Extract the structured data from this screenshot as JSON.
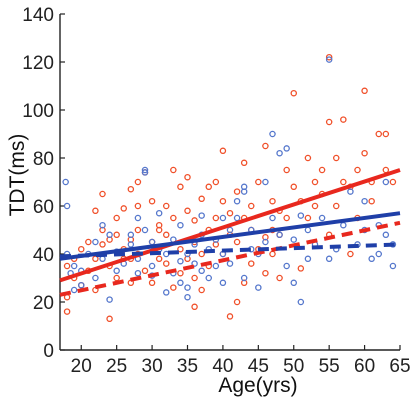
{
  "chart_data": {
    "type": "scatter",
    "title": "",
    "xlabel": "Age(yrs)",
    "ylabel": "TDT(ms)",
    "xlim": [
      17,
      65
    ],
    "ylim": [
      0,
      140
    ],
    "xticks": [
      20,
      25,
      30,
      35,
      40,
      45,
      50,
      55,
      60,
      65
    ],
    "yticks": [
      0,
      20,
      40,
      60,
      80,
      100,
      120,
      140
    ],
    "grid": false,
    "legend": "none",
    "colors": {
      "red": "#f0502a",
      "blue": "#5577cc",
      "red_line": "#e8281e",
      "blue_line": "#1f3fa8"
    },
    "series": [
      {
        "color": "red",
        "points": [
          [
            18,
            22
          ],
          [
            18,
            16
          ],
          [
            18,
            35
          ],
          [
            19,
            30
          ],
          [
            19,
            38
          ],
          [
            20,
            42
          ],
          [
            20,
            27
          ],
          [
            21,
            33
          ],
          [
            21,
            45
          ],
          [
            22,
            58
          ],
          [
            22,
            38
          ],
          [
            22,
            25
          ],
          [
            23,
            50
          ],
          [
            23,
            65
          ],
          [
            23,
            44
          ],
          [
            24,
            13
          ],
          [
            24,
            35
          ],
          [
            24,
            46
          ],
          [
            25,
            55
          ],
          [
            25,
            48
          ],
          [
            25,
            30
          ],
          [
            26,
            59
          ],
          [
            26,
            42
          ],
          [
            26,
            38
          ],
          [
            27,
            67
          ],
          [
            27,
            46
          ],
          [
            27,
            28
          ],
          [
            27,
            38
          ],
          [
            28,
            70
          ],
          [
            28,
            60
          ],
          [
            28,
            50
          ],
          [
            28,
            40
          ],
          [
            29,
            74
          ],
          [
            29,
            33
          ],
          [
            30,
            45
          ],
          [
            30,
            62
          ],
          [
            30,
            28
          ],
          [
            31,
            52
          ],
          [
            31,
            38
          ],
          [
            31,
            50
          ],
          [
            32,
            48
          ],
          [
            32,
            36
          ],
          [
            32,
            60
          ],
          [
            33,
            75
          ],
          [
            33,
            55
          ],
          [
            33,
            26
          ],
          [
            34,
            68
          ],
          [
            34,
            42
          ],
          [
            34,
            32
          ],
          [
            35,
            38
          ],
          [
            35,
            58
          ],
          [
            35,
            72
          ],
          [
            36,
            45
          ],
          [
            36,
            54
          ],
          [
            36,
            30
          ],
          [
            36,
            18
          ],
          [
            37,
            63
          ],
          [
            37,
            40
          ],
          [
            37,
            25
          ],
          [
            38,
            50
          ],
          [
            38,
            35
          ],
          [
            38,
            68
          ],
          [
            39,
            70
          ],
          [
            39,
            55
          ],
          [
            39,
            44
          ],
          [
            40,
            83
          ],
          [
            40,
            62
          ],
          [
            40,
            40
          ],
          [
            41,
            57
          ],
          [
            41,
            48
          ],
          [
            41,
            14
          ],
          [
            42,
            66
          ],
          [
            42,
            45
          ],
          [
            42,
            20
          ],
          [
            43,
            78
          ],
          [
            43,
            55
          ],
          [
            43,
            28
          ],
          [
            44,
            60
          ],
          [
            44,
            50
          ],
          [
            44,
            36
          ],
          [
            45,
            70
          ],
          [
            45,
            42
          ],
          [
            46,
            85
          ],
          [
            46,
            32
          ],
          [
            46,
            47
          ],
          [
            47,
            62
          ],
          [
            47,
            50
          ],
          [
            47,
            40
          ],
          [
            48,
            58
          ],
          [
            48,
            30
          ],
          [
            48,
            48
          ],
          [
            49,
            75
          ],
          [
            49,
            55
          ],
          [
            50,
            107
          ],
          [
            50,
            68
          ],
          [
            51,
            62
          ],
          [
            51,
            34
          ],
          [
            52,
            80
          ],
          [
            52,
            55
          ],
          [
            53,
            70
          ],
          [
            53,
            60
          ],
          [
            54,
            75
          ],
          [
            54,
            65
          ],
          [
            55,
            95
          ],
          [
            55,
            122
          ],
          [
            55,
            48
          ],
          [
            56,
            80
          ],
          [
            56,
            60
          ],
          [
            57,
            96
          ],
          [
            57,
            70
          ],
          [
            58,
            68
          ],
          [
            58,
            40
          ],
          [
            59,
            75
          ],
          [
            59,
            55
          ],
          [
            60,
            108
          ],
          [
            60,
            82
          ],
          [
            61,
            70
          ],
          [
            61,
            62
          ],
          [
            62,
            90
          ],
          [
            63,
            90
          ],
          [
            63,
            75
          ],
          [
            64,
            70
          ]
        ]
      },
      {
        "color": "blue",
        "points": [
          [
            17.8,
            70
          ],
          [
            18,
            60
          ],
          [
            18,
            40
          ],
          [
            18.5,
            32
          ],
          [
            19,
            25
          ],
          [
            19,
            35
          ],
          [
            20,
            27
          ],
          [
            20,
            33
          ],
          [
            21,
            40
          ],
          [
            22,
            45
          ],
          [
            22,
            30
          ],
          [
            23,
            52
          ],
          [
            23,
            38
          ],
          [
            24,
            48
          ],
          [
            24,
            21
          ],
          [
            25,
            41
          ],
          [
            25,
            33
          ],
          [
            26,
            36
          ],
          [
            27,
            48
          ],
          [
            27,
            44
          ],
          [
            28,
            55
          ],
          [
            28,
            38
          ],
          [
            28,
            32
          ],
          [
            29,
            75
          ],
          [
            29,
            74
          ],
          [
            29,
            50
          ],
          [
            30,
            45
          ],
          [
            30,
            35
          ],
          [
            30,
            31
          ],
          [
            31,
            42
          ],
          [
            31,
            57
          ],
          [
            32,
            40
          ],
          [
            32,
            24
          ],
          [
            33,
            32
          ],
          [
            33,
            46
          ],
          [
            34,
            52
          ],
          [
            34,
            28
          ],
          [
            34,
            37
          ],
          [
            35,
            40
          ],
          [
            35,
            26
          ],
          [
            35,
            22
          ],
          [
            36,
            36
          ],
          [
            36,
            44
          ],
          [
            37,
            48
          ],
          [
            37,
            33
          ],
          [
            37,
            56
          ],
          [
            38,
            42
          ],
          [
            38,
            30
          ],
          [
            39,
            35
          ],
          [
            39,
            46
          ],
          [
            40,
            55
          ],
          [
            40,
            40
          ],
          [
            40,
            28
          ],
          [
            41,
            50
          ],
          [
            41,
            36
          ],
          [
            42,
            62
          ],
          [
            42,
            55
          ],
          [
            43,
            68
          ],
          [
            43,
            66
          ],
          [
            43,
            30
          ],
          [
            44,
            50
          ],
          [
            44,
            42
          ],
          [
            45,
            40
          ],
          [
            45,
            26
          ],
          [
            46,
            70
          ],
          [
            46,
            45
          ],
          [
            47,
            90
          ],
          [
            47,
            55
          ],
          [
            48,
            82
          ],
          [
            48,
            48
          ],
          [
            49,
            84
          ],
          [
            49,
            35
          ],
          [
            50,
            46
          ],
          [
            50,
            28
          ],
          [
            51,
            20
          ],
          [
            51,
            56
          ],
          [
            52,
            38
          ],
          [
            52,
            50
          ],
          [
            53,
            44
          ],
          [
            54,
            55
          ],
          [
            55,
            121
          ],
          [
            55,
            38
          ],
          [
            56,
            42
          ],
          [
            57,
            52
          ],
          [
            58,
            66
          ],
          [
            59,
            44
          ],
          [
            60,
            62
          ],
          [
            60,
            50
          ],
          [
            61,
            38
          ],
          [
            62,
            52
          ],
          [
            62,
            40
          ],
          [
            63,
            70
          ],
          [
            63,
            48
          ],
          [
            64,
            35
          ],
          [
            64,
            44
          ]
        ]
      }
    ],
    "fit_lines": [
      {
        "color": "red_line",
        "style": "solid",
        "x": [
          17,
          65
        ],
        "y": [
          29,
          75
        ]
      },
      {
        "color": "blue_line",
        "style": "solid",
        "x": [
          17,
          65
        ],
        "y": [
          38,
          57
        ]
      },
      {
        "color": "red_line",
        "style": "dashed",
        "x": [
          17,
          65
        ],
        "y": [
          23,
          53
        ]
      },
      {
        "color": "blue_line",
        "style": "dashed",
        "x": [
          17,
          65
        ],
        "y": [
          39,
          44
        ]
      }
    ]
  }
}
